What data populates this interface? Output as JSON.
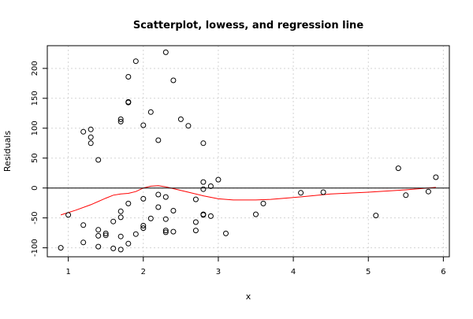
{
  "chart_data": {
    "type": "scatter",
    "title": "Scatterplot, lowess, and regression line",
    "xlabel": "x",
    "ylabel": "Residuals",
    "xlim": [
      0.72,
      6.08
    ],
    "ylim": [
      -115,
      238
    ],
    "x_ticks": [
      1,
      2,
      3,
      4,
      5,
      6
    ],
    "y_ticks": [
      -100,
      -50,
      0,
      50,
      100,
      150,
      200
    ],
    "grid": true,
    "series": [
      {
        "type": "scatter",
        "marker": "open-circle",
        "color": "#000000",
        "points": [
          [
            0.9,
            -100
          ],
          [
            1.0,
            -45
          ],
          [
            1.2,
            94
          ],
          [
            1.2,
            -62
          ],
          [
            1.2,
            -91
          ],
          [
            1.3,
            98
          ],
          [
            1.3,
            85
          ],
          [
            1.3,
            75
          ],
          [
            1.4,
            47
          ],
          [
            1.4,
            -70
          ],
          [
            1.4,
            -80
          ],
          [
            1.4,
            -98
          ],
          [
            1.5,
            -76
          ],
          [
            1.5,
            -79
          ],
          [
            1.6,
            -56
          ],
          [
            1.6,
            -101
          ],
          [
            1.7,
            115
          ],
          [
            1.7,
            111
          ],
          [
            1.7,
            -39
          ],
          [
            1.7,
            -49
          ],
          [
            1.7,
            -81
          ],
          [
            1.7,
            -103
          ],
          [
            1.8,
            186
          ],
          [
            1.8,
            144
          ],
          [
            1.8,
            143
          ],
          [
            1.8,
            -26
          ],
          [
            1.8,
            -93
          ],
          [
            1.9,
            212
          ],
          [
            1.9,
            -77
          ],
          [
            2.0,
            105
          ],
          [
            2.0,
            -18
          ],
          [
            2.0,
            -63
          ],
          [
            2.0,
            -67
          ],
          [
            2.1,
            127
          ],
          [
            2.1,
            -51
          ],
          [
            2.2,
            80
          ],
          [
            2.2,
            -11
          ],
          [
            2.2,
            -32
          ],
          [
            2.3,
            227
          ],
          [
            2.3,
            -15
          ],
          [
            2.3,
            -52
          ],
          [
            2.3,
            -71
          ],
          [
            2.3,
            -74
          ],
          [
            2.4,
            180
          ],
          [
            2.4,
            -38
          ],
          [
            2.4,
            -73
          ],
          [
            2.5,
            115
          ],
          [
            2.6,
            104
          ],
          [
            2.7,
            -19
          ],
          [
            2.7,
            -57
          ],
          [
            2.7,
            -71
          ],
          [
            2.8,
            75
          ],
          [
            2.8,
            10
          ],
          [
            2.8,
            -2
          ],
          [
            2.8,
            -44
          ],
          [
            2.8,
            -45
          ],
          [
            2.9,
            3
          ],
          [
            2.9,
            -47
          ],
          [
            3.0,
            14
          ],
          [
            3.1,
            -76
          ],
          [
            3.5,
            -44
          ],
          [
            3.6,
            -26
          ],
          [
            4.1,
            -8
          ],
          [
            4.4,
            -7
          ],
          [
            5.1,
            -46
          ],
          [
            5.4,
            33
          ],
          [
            5.5,
            -12
          ],
          [
            5.8,
            -6
          ],
          [
            5.9,
            18
          ]
        ]
      },
      {
        "type": "line",
        "name": "lowess",
        "color": "#ff0000",
        "points": [
          [
            0.9,
            -45
          ],
          [
            1.1,
            -37
          ],
          [
            1.3,
            -28
          ],
          [
            1.5,
            -17
          ],
          [
            1.6,
            -12
          ],
          [
            1.7,
            -10
          ],
          [
            1.8,
            -9
          ],
          [
            1.9,
            -6
          ],
          [
            2.0,
            0
          ],
          [
            2.1,
            3
          ],
          [
            2.2,
            4
          ],
          [
            2.3,
            2
          ],
          [
            2.4,
            -1
          ],
          [
            2.6,
            -7
          ],
          [
            2.8,
            -13
          ],
          [
            3.0,
            -18
          ],
          [
            3.2,
            -20
          ],
          [
            3.5,
            -20
          ],
          [
            3.7,
            -19
          ],
          [
            4.0,
            -16
          ],
          [
            4.5,
            -10
          ],
          [
            5.0,
            -7
          ],
          [
            5.5,
            -3
          ],
          [
            5.9,
            1
          ]
        ]
      },
      {
        "type": "line",
        "name": "regression line",
        "color": "#000000",
        "points": [
          [
            0.72,
            0
          ],
          [
            6.08,
            0
          ]
        ]
      }
    ]
  }
}
